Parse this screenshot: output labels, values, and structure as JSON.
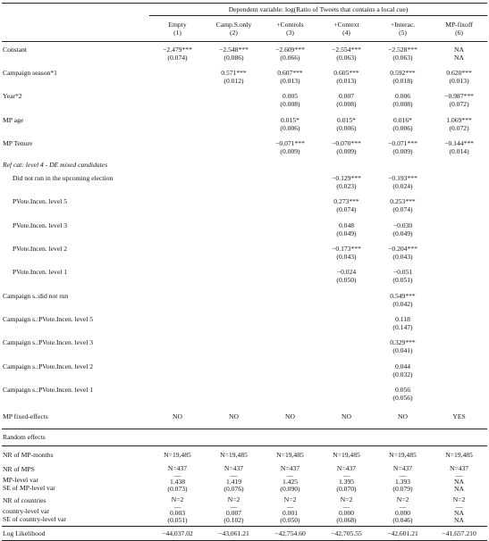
{
  "header": {
    "dependent": "Dependent variable: log(Ratio of Tweets that contains a local cue)",
    "columns": [
      [
        "Empty",
        "(1)"
      ],
      [
        "Camp.S.only",
        "(2)"
      ],
      [
        "+Controls",
        "(3)"
      ],
      [
        "+Context",
        "(4)"
      ],
      [
        "+Interac.",
        "(5)"
      ],
      [
        "MP-fixoff",
        "(6)"
      ]
    ]
  },
  "table": {
    "rows": [
      {
        "label": "Constant",
        "cells": [
          [
            "−2.479***",
            "(0.074)"
          ],
          [
            "−2.548***",
            "(0.086)"
          ],
          [
            "−2.609***",
            "(0.066)"
          ],
          [
            "−2.554***",
            "(0.063)"
          ],
          [
            "−2.528***",
            "(0.063)"
          ],
          [
            "NA",
            "NA"
          ]
        ]
      },
      {
        "label": "Campaign season*1",
        "cells": [
          null,
          [
            "0.571***",
            "(0.012)"
          ],
          [
            "0.607***",
            "(0.013)"
          ],
          [
            "0.605***",
            "(0.013)"
          ],
          [
            "0.592***",
            "(0.018)"
          ],
          [
            "0.620***",
            "(0.013)"
          ]
        ]
      },
      {
        "label": "Year*2",
        "cells": [
          null,
          null,
          [
            "0.005",
            "(0.008)"
          ],
          [
            "0.007",
            "(0.008)"
          ],
          [
            "0.006",
            "(0.008)"
          ],
          [
            "−0.987***",
            "(0.072)"
          ]
        ]
      },
      {
        "label": "MP age",
        "cells": [
          null,
          null,
          [
            "0.015*",
            "(0.006)"
          ],
          [
            "0.015*",
            "(0.006)"
          ],
          [
            "0.016*",
            "(0.006)"
          ],
          [
            "1.069***",
            "(0.072)"
          ]
        ]
      },
      {
        "label": "MP Tenure",
        "cells": [
          null,
          null,
          [
            "−0.071***",
            "(0.009)"
          ],
          [
            "−0.070***",
            "(0.009)"
          ],
          [
            "−0.071***",
            "(0.009)"
          ],
          [
            "−0.144***",
            "(0.014)"
          ]
        ]
      },
      {
        "label": "Ref cat: level 4 - DE mixed candidates",
        "italic": true,
        "cells": [
          null,
          null,
          null,
          null,
          null,
          null
        ]
      },
      {
        "label": "Did not run in the upcoming election",
        "indent": true,
        "cells": [
          null,
          null,
          null,
          [
            "−0.129***",
            "(0.023)"
          ],
          [
            "−0.193***",
            "(0.024)"
          ],
          null
        ]
      },
      {
        "label": "PVote.Incen. level 5",
        "indent": true,
        "cells": [
          null,
          null,
          null,
          [
            "0.273***",
            "(0.074)"
          ],
          [
            "0.253***",
            "(0.074)"
          ],
          null
        ]
      },
      {
        "label": "PVote.Incen. level 3",
        "indent": true,
        "cells": [
          null,
          null,
          null,
          [
            "0.048",
            "(0.049)"
          ],
          [
            "−0.030",
            "(0.049)"
          ],
          null
        ]
      },
      {
        "label": "PVote.Incen. level 2",
        "indent": true,
        "cells": [
          null,
          null,
          null,
          [
            "−0.173***",
            "(0.043)"
          ],
          [
            "−0.204***",
            "(0.043)"
          ],
          null
        ]
      },
      {
        "label": "PVote.Incen. level 1",
        "indent": true,
        "cells": [
          null,
          null,
          null,
          [
            "−0.024",
            "(0.050)"
          ],
          [
            "−0.051",
            "(0.051)"
          ],
          null
        ]
      },
      {
        "label": "Campaign s.:did not run",
        "cells": [
          null,
          null,
          null,
          null,
          [
            "0.549***",
            "(0.042)"
          ],
          null
        ]
      },
      {
        "label": "Campaign s.:PVote.Incen. level 5",
        "cells": [
          null,
          null,
          null,
          null,
          [
            "0.118",
            "(0.147)"
          ],
          null
        ]
      },
      {
        "label": "Campaign s.:PVote.Incen. level 3",
        "cells": [
          null,
          null,
          null,
          null,
          [
            "0.329***",
            "(0.041)"
          ],
          null
        ]
      },
      {
        "label": "Campaign s.:PVote.Incen. level 2",
        "cells": [
          null,
          null,
          null,
          null,
          [
            "0.044",
            "(0.032)"
          ],
          null
        ]
      },
      {
        "label": "Campaign s.:PVote.Incen. level 1",
        "cells": [
          null,
          null,
          null,
          null,
          [
            "0.056",
            "(0.056)"
          ],
          null
        ]
      },
      {
        "label": "MP fixed-effects",
        "cells": [
          [
            "NO"
          ],
          [
            "NO"
          ],
          [
            "NO"
          ],
          [
            "NO"
          ],
          [
            "NO"
          ],
          [
            "YES"
          ]
        ]
      }
    ],
    "random": [
      {
        "label": [
          "Random effects"
        ],
        "cells": [
          null,
          null,
          null,
          null,
          null,
          null
        ]
      },
      {
        "label": [
          "NR of MP-months"
        ],
        "cells": [
          [
            "N=19,485"
          ],
          [
            "N=19,485"
          ],
          [
            "N=19,485"
          ],
          [
            "N=19,485"
          ],
          [
            "N=19,485"
          ],
          [
            "N=19,485"
          ]
        ]
      },
      {
        "label": [
          "NR of MPS",
          "MP-level var",
          "SE of MP-level var"
        ],
        "cells": [
          [
            "N=437",
            "—",
            "1.438",
            "(0.073)"
          ],
          [
            "N=437",
            "—",
            "1.419",
            "(0.076)"
          ],
          [
            "N=437",
            "—",
            "1.425",
            "(0.090)"
          ],
          [
            "N=437",
            "—",
            "1.395",
            "(0.070)"
          ],
          [
            "N=437",
            "—",
            "1.393",
            "(0.079)"
          ],
          [
            "N=437",
            "—",
            "NA",
            "NA"
          ]
        ]
      },
      {
        "label": [
          "NR of countries",
          "country-level var",
          "SE of country-level var"
        ],
        "cells": [
          [
            "N=2",
            "—",
            "0.003",
            "(0.051)"
          ],
          [
            "N=2",
            "—",
            "0.007",
            "(0.102)"
          ],
          [
            "N=2",
            "—",
            "0.001",
            "(0.050)"
          ],
          [
            "N=2",
            "—",
            "0.000",
            "(0.068)"
          ],
          [
            "N=2",
            "—",
            "0.000",
            "(0.046)"
          ],
          [
            "N=2",
            "—",
            "NA",
            "NA"
          ]
        ]
      },
      {
        "label": [
          "Log Likelihood"
        ],
        "cells": [
          [
            "−44,037.02"
          ],
          [
            "−43,061.21"
          ],
          [
            "−42,754.60"
          ],
          [
            "−42,705.55"
          ],
          [
            "−42,601.21"
          ],
          [
            "−41,657.210"
          ]
        ]
      }
    ]
  }
}
